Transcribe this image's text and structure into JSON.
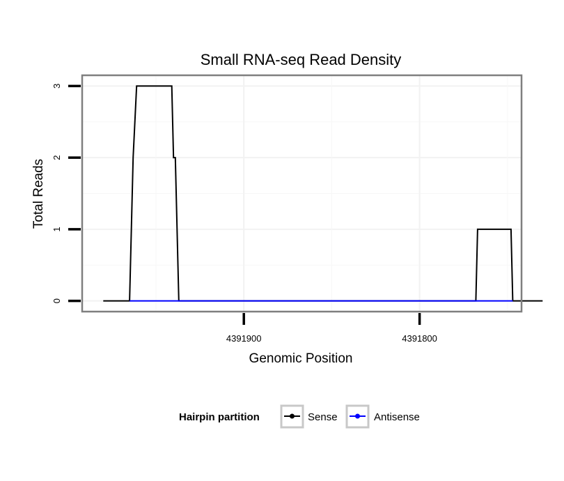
{
  "chart_data": {
    "type": "line",
    "title": "Small RNA-seq Read Density",
    "xlabel": "Genomic Position",
    "ylabel": "Total Reads",
    "x_reversed": true,
    "xlim": [
      4391992,
      4391742
    ],
    "ylim": [
      -0.15,
      3.15
    ],
    "x_ticks": [
      4391900,
      4391800
    ],
    "x_tick_labels": [
      "4391900",
      "4391800"
    ],
    "y_ticks": [
      0,
      1,
      2,
      3
    ],
    "y_tick_labels": [
      "0",
      "1",
      "2",
      "3"
    ],
    "grid": true,
    "legend": {
      "title": "Hairpin partition",
      "position": "bottom",
      "entries": [
        {
          "name": "Sense",
          "color": "#000000"
        },
        {
          "name": "Antisense",
          "color": "#0000ff"
        }
      ]
    },
    "series": [
      {
        "name": "Sense",
        "color": "#000000",
        "x": [
          4391980,
          4391965,
          4391963,
          4391961,
          4391941,
          4391940,
          4391939,
          4391937,
          4391768,
          4391767,
          4391748,
          4391747,
          4391730
        ],
        "y": [
          0,
          0,
          2,
          3,
          3,
          2,
          2,
          0,
          0,
          1,
          1,
          0,
          0
        ]
      },
      {
        "name": "Antisense",
        "color": "#0000ff",
        "x": [
          4391965,
          4391938,
          4391768,
          4391747
        ],
        "y": [
          0,
          0,
          0,
          0
        ]
      }
    ]
  }
}
